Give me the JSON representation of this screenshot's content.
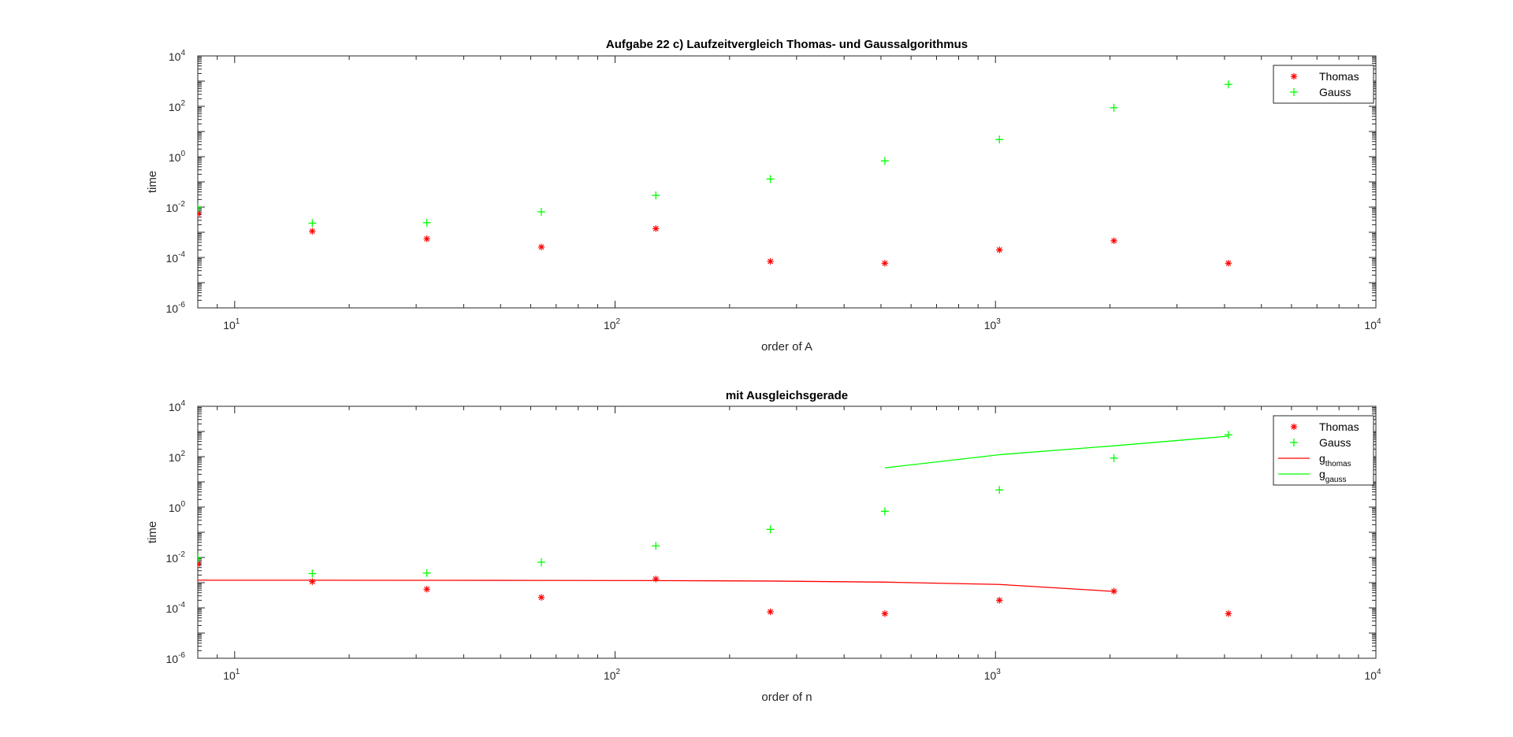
{
  "colors": {
    "thomas": "#ff0000",
    "gauss": "#00ff00",
    "axis": "#262626",
    "background": "#ffffff"
  },
  "chart_data": [
    {
      "type": "scatter",
      "title": "Aufgabe 22 c) Laufzeitvergleich Thomas- und Gaussalgorithmus",
      "xlabel": "order of A",
      "ylabel": "time",
      "xscale": "log",
      "yscale": "log",
      "xlim": [
        8,
        10000
      ],
      "ylim": [
        1e-06,
        10000
      ],
      "grid": false,
      "legend_position": "top-right",
      "x_ticks": [
        {
          "base": "10",
          "exp": "1",
          "value": 10
        },
        {
          "base": "10",
          "exp": "2",
          "value": 100
        },
        {
          "base": "10",
          "exp": "3",
          "value": 1000
        },
        {
          "base": "10",
          "exp": "4",
          "value": 10000
        }
      ],
      "y_ticks": [
        {
          "base": "10",
          "exp": "-6",
          "value": 1e-06
        },
        {
          "base": "10",
          "exp": "-4",
          "value": 0.0001
        },
        {
          "base": "10",
          "exp": "-2",
          "value": 0.01
        },
        {
          "base": "10",
          "exp": "0",
          "value": 1
        },
        {
          "base": "10",
          "exp": "2",
          "value": 100
        },
        {
          "base": "10",
          "exp": "4",
          "value": 10000
        }
      ],
      "series": [
        {
          "name": "Thomas",
          "marker": "asterisk",
          "color": "#ff0000",
          "style": "marker",
          "x": [
            8,
            16,
            32,
            64,
            128,
            256,
            512,
            1024,
            2048,
            4096
          ],
          "y": [
            0.0055,
            0.0011,
            0.00055,
            0.00026,
            0.0014,
            7e-05,
            5.9e-05,
            0.0002,
            0.00046,
            5.9e-05
          ]
        },
        {
          "name": "Gauss",
          "marker": "plus",
          "color": "#00ff00",
          "style": "marker",
          "x": [
            8,
            16,
            32,
            64,
            128,
            256,
            512,
            1024,
            2048,
            4096
          ],
          "y": [
            0.0095,
            0.0023,
            0.0024,
            0.0065,
            0.029,
            0.13,
            0.68,
            4.8,
            88,
            740
          ]
        }
      ]
    },
    {
      "type": "scatter",
      "title": "mit Ausgleichsgerade",
      "xlabel": "order of n",
      "ylabel": "time",
      "xscale": "log",
      "yscale": "log",
      "xlim": [
        8,
        10000
      ],
      "ylim": [
        1e-06,
        10000
      ],
      "grid": false,
      "legend_position": "top-right",
      "x_ticks": [
        {
          "base": "10",
          "exp": "1",
          "value": 10
        },
        {
          "base": "10",
          "exp": "2",
          "value": 100
        },
        {
          "base": "10",
          "exp": "3",
          "value": 1000
        },
        {
          "base": "10",
          "exp": "4",
          "value": 10000
        }
      ],
      "y_ticks": [
        {
          "base": "10",
          "exp": "-6",
          "value": 1e-06
        },
        {
          "base": "10",
          "exp": "-4",
          "value": 0.0001
        },
        {
          "base": "10",
          "exp": "-2",
          "value": 0.01
        },
        {
          "base": "10",
          "exp": "0",
          "value": 1
        },
        {
          "base": "10",
          "exp": "2",
          "value": 100
        },
        {
          "base": "10",
          "exp": "4",
          "value": 10000
        }
      ],
      "series": [
        {
          "name": "Thomas",
          "marker": "asterisk",
          "color": "#ff0000",
          "style": "marker",
          "x": [
            8,
            16,
            32,
            64,
            128,
            256,
            512,
            1024,
            2048,
            4096
          ],
          "y": [
            0.0055,
            0.0011,
            0.00055,
            0.00026,
            0.0014,
            7e-05,
            5.9e-05,
            0.0002,
            0.00046,
            5.9e-05
          ]
        },
        {
          "name": "Gauss",
          "marker": "plus",
          "color": "#00ff00",
          "style": "marker",
          "x": [
            8,
            16,
            32,
            64,
            128,
            256,
            512,
            1024,
            2048,
            4096
          ],
          "y": [
            0.0095,
            0.0023,
            0.0024,
            0.0065,
            0.029,
            0.13,
            0.68,
            4.8,
            88,
            740
          ]
        },
        {
          "name": "g",
          "subscript": "thomas",
          "color": "#ff0000",
          "style": "line",
          "x": [
            8,
            16,
            32,
            64,
            128,
            256,
            512,
            1024,
            2048
          ],
          "y": [
            0.00125,
            0.00125,
            0.00124,
            0.00123,
            0.00121,
            0.00116,
            0.00105,
            0.00085,
            0.00045
          ]
        },
        {
          "name": "g",
          "subscript": "gauss",
          "color": "#00ff00",
          "style": "line",
          "x": [
            512,
            1024,
            2048,
            4096
          ],
          "y": [
            36,
            120,
            270,
            650
          ]
        }
      ]
    }
  ]
}
